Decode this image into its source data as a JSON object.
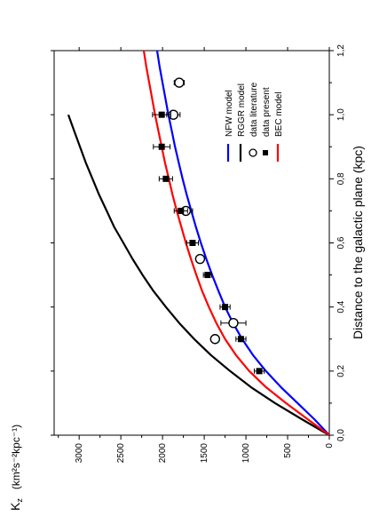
{
  "chart_data": {
    "type": "line",
    "title": "",
    "xlabel": "Distance to the galactic plane (kpc)",
    "ylabel_main": "K",
    "ylabel_sub": "z",
    "ylabel_units": "(km²s⁻²kpc⁻¹)",
    "xlim": [
      0,
      1.2
    ],
    "ylim": [
      0,
      3300
    ],
    "x_ticks": [
      "0,0",
      "0,2",
      "0,4",
      "0,6",
      "0,8",
      "1,0",
      "1,2"
    ],
    "y_ticks": [
      "0",
      "500",
      "1000",
      "1500",
      "2000",
      "2500",
      "3000"
    ],
    "x_tick_values": [
      0,
      0.2,
      0.4,
      0.6,
      0.8,
      1.0,
      1.2
    ],
    "y_tick_values": [
      0,
      500,
      1000,
      1500,
      2000,
      2500,
      3000
    ],
    "orientation": "rotated 90 degrees counter-clockwise",
    "legend_position": "inside, near the high-y edge",
    "series": [
      {
        "name": "NFW model",
        "kind": "line",
        "color": "#0000ff",
        "x": [
          0,
          0.05,
          0.1,
          0.15,
          0.2,
          0.25,
          0.3,
          0.35,
          0.4,
          0.45,
          0.5,
          0.55,
          0.6,
          0.65,
          0.7,
          0.75,
          0.8,
          0.85,
          0.9,
          0.95,
          1.0,
          1.05,
          1.1,
          1.15,
          1.2
        ],
        "y": [
          0,
          180,
          380,
          580,
          760,
          915,
          1045,
          1155,
          1250,
          1330,
          1405,
          1475,
          1540,
          1600,
          1655,
          1710,
          1760,
          1805,
          1850,
          1890,
          1930,
          1965,
          2000,
          2035,
          2065
        ]
      },
      {
        "name": "RGGR model",
        "kind": "line",
        "color": "#000000",
        "x": [
          0,
          0.05,
          0.1,
          0.15,
          0.2,
          0.25,
          0.3,
          0.35,
          0.4,
          0.45,
          0.5,
          0.55,
          0.6,
          0.65,
          0.7,
          0.75,
          0.8,
          0.85,
          0.9,
          0.95,
          1.0
        ],
        "y": [
          0,
          330,
          650,
          940,
          1190,
          1420,
          1620,
          1800,
          1960,
          2110,
          2240,
          2360,
          2470,
          2580,
          2670,
          2760,
          2840,
          2920,
          2990,
          3060,
          3130
        ]
      },
      {
        "name": "data literature",
        "kind": "open-circle",
        "color": "#000000",
        "points": [
          {
            "x": 0.3,
            "y": 1370,
            "err": 0
          },
          {
            "x": 0.35,
            "y": 1150,
            "err": 150
          },
          {
            "x": 0.55,
            "y": 1550,
            "err": 0
          },
          {
            "x": 0.7,
            "y": 1720,
            "err": 80
          },
          {
            "x": 1.0,
            "y": 1870,
            "err": 80
          },
          {
            "x": 1.1,
            "y": 1800,
            "err": 60
          }
        ]
      },
      {
        "name": "data present",
        "kind": "filled-square",
        "color": "#000000",
        "points": [
          {
            "x": 0.2,
            "y": 840,
            "err": 60
          },
          {
            "x": 0.3,
            "y": 1060,
            "err": 60
          },
          {
            "x": 0.4,
            "y": 1250,
            "err": 60
          },
          {
            "x": 0.5,
            "y": 1460,
            "err": 50
          },
          {
            "x": 0.6,
            "y": 1640,
            "err": 70
          },
          {
            "x": 0.7,
            "y": 1780,
            "err": 80
          },
          {
            "x": 0.8,
            "y": 1960,
            "err": 80
          },
          {
            "x": 0.9,
            "y": 2010,
            "err": 100
          },
          {
            "x": 1.0,
            "y": 2010,
            "err": 110
          }
        ]
      },
      {
        "name": "BEC model",
        "kind": "line",
        "color": "#ff0000",
        "x": [
          0,
          0.05,
          0.1,
          0.15,
          0.2,
          0.25,
          0.3,
          0.35,
          0.4,
          0.45,
          0.5,
          0.55,
          0.6,
          0.65,
          0.7,
          0.75,
          0.8,
          0.85,
          0.9,
          0.95,
          1.0,
          1.05,
          1.1,
          1.15,
          1.2
        ],
        "y": [
          0,
          260,
          520,
          760,
          960,
          1120,
          1250,
          1355,
          1445,
          1525,
          1595,
          1660,
          1720,
          1775,
          1830,
          1880,
          1925,
          1970,
          2010,
          2050,
          2090,
          2125,
          2160,
          2195,
          2225
        ]
      }
    ]
  }
}
